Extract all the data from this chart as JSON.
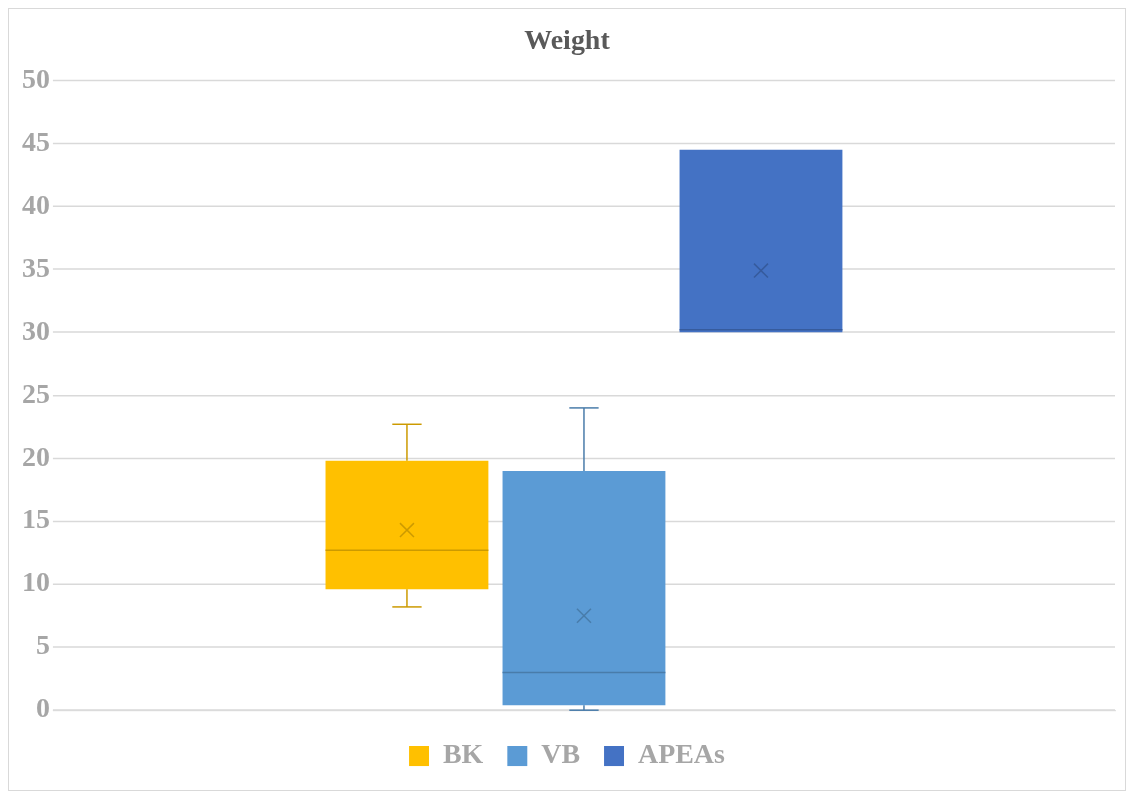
{
  "chart_data": {
    "type": "box",
    "title": "Weight",
    "categories": [
      null
    ],
    "ylim": [
      0,
      50
    ],
    "yticks": [
      0,
      5,
      10,
      15,
      20,
      25,
      30,
      35,
      40,
      45,
      50
    ],
    "grid": "y",
    "legend": "bottom",
    "tick_labels": "y",
    "series": [
      {
        "name": "BK",
        "color": "#ffc000",
        "boxes": [
          {
            "low": 8.2,
            "q1": 9.6,
            "median": 12.7,
            "q3": 19.8,
            "high": 22.7,
            "mean": 14.3
          }
        ]
      },
      {
        "name": "VB",
        "color": "#5b9bd5",
        "boxes": [
          {
            "low": 0,
            "q1": 0.4,
            "median": 3.0,
            "q3": 19.0,
            "high": 24.0,
            "mean": 7.5
          }
        ]
      },
      {
        "name": "APEAs",
        "color": "#4472c4",
        "boxes": [
          {
            "low": 30.0,
            "q1": 30.0,
            "median": 30.2,
            "q3": 44.5,
            "high": 44.5,
            "mean": 34.9
          }
        ]
      }
    ]
  }
}
